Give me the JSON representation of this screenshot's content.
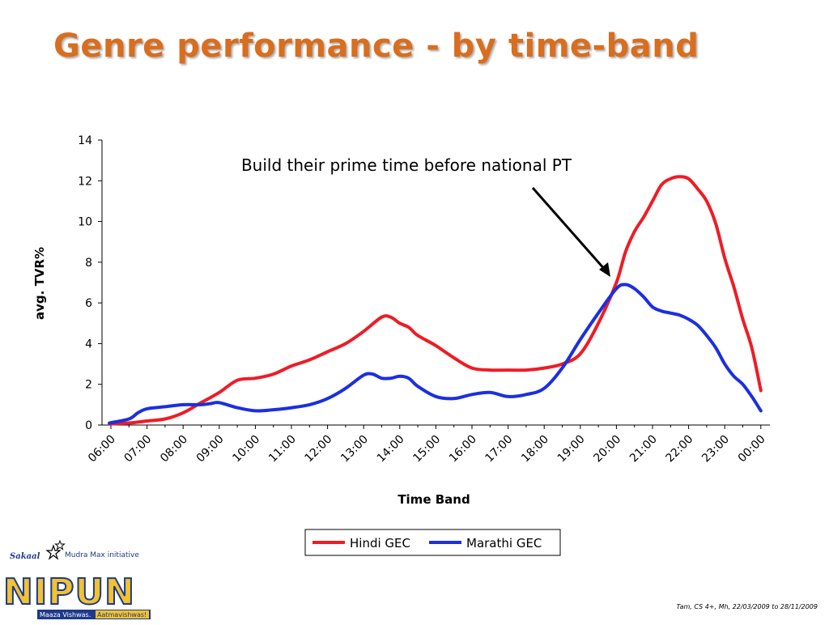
{
  "slide": {
    "title": "Genre performance - by time-band",
    "source_note": "Tam, CS 4+, Mh, 22/03/2009 to 28/11/2009"
  },
  "logo": {
    "brand_small": "Sakaal",
    "tagline": "Mudra Max initiative",
    "name": "NIPUN",
    "banner_left": "Maaza Vishwas.",
    "banner_right": "Aatmavishwas!"
  },
  "colors": {
    "title": "#D86E1E",
    "hindi": "#EE1C25",
    "marathi": "#1B2FE0"
  },
  "chart_data": {
    "type": "line",
    "title": "",
    "xlabel": "Time Band",
    "ylabel": "avg. TVR%",
    "ylim": [
      0,
      14
    ],
    "yticks": [
      0,
      2,
      4,
      6,
      8,
      10,
      12,
      14
    ],
    "xticks": [
      "06:00",
      "07:00",
      "08:00",
      "09:00",
      "10:00",
      "11:00",
      "12:00",
      "13:00",
      "14:00",
      "15:00",
      "16:00",
      "17:00",
      "18:00",
      "19:00",
      "20:00",
      "21:00",
      "22:00",
      "23:00",
      "00:00"
    ],
    "x_units": "hours from 06:00 (0 = 06:00, 18 = 00:00)",
    "xlim": [
      0,
      18.6
    ],
    "legend_position": "bottom",
    "annotation": "Build their prime time before national PT",
    "series": [
      {
        "name": "Hindi GEC",
        "color": "#EE1C25",
        "x": [
          -0.04,
          0.5,
          1.0,
          1.5,
          2.0,
          2.5,
          3.0,
          3.5,
          4.0,
          4.5,
          5.0,
          5.5,
          6.0,
          6.5,
          7.0,
          7.5,
          7.75,
          8.0,
          8.25,
          8.5,
          9.0,
          9.5,
          10.0,
          10.5,
          11.0,
          11.5,
          12.0,
          12.5,
          13.0,
          13.5,
          14.0,
          14.25,
          14.5,
          14.75,
          15.0,
          15.25,
          15.5,
          15.75,
          16.0,
          16.25,
          16.5,
          16.75,
          17.0,
          17.25,
          17.5,
          17.75,
          18.0
        ],
        "values": [
          0.05,
          0.1,
          0.2,
          0.3,
          0.6,
          1.1,
          1.6,
          2.2,
          2.3,
          2.5,
          2.9,
          3.2,
          3.6,
          4.0,
          4.6,
          5.3,
          5.3,
          5.0,
          4.8,
          4.4,
          3.9,
          3.3,
          2.8,
          2.7,
          2.7,
          2.7,
          2.8,
          3.0,
          3.5,
          5.0,
          7.0,
          8.5,
          9.5,
          10.2,
          11.0,
          11.8,
          12.1,
          12.2,
          12.1,
          11.6,
          11.0,
          9.9,
          8.2,
          6.8,
          5.2,
          3.8,
          1.7
        ]
      },
      {
        "name": "Marathi GEC",
        "color": "#1B2FE0",
        "x": [
          -0.04,
          0.5,
          0.75,
          1.0,
          1.5,
          2.0,
          2.5,
          2.75,
          3.0,
          3.5,
          4.0,
          4.5,
          5.0,
          5.5,
          6.0,
          6.5,
          7.0,
          7.25,
          7.5,
          7.75,
          8.0,
          8.25,
          8.5,
          9.0,
          9.5,
          10.0,
          10.5,
          11.0,
          11.5,
          12.0,
          12.5,
          13.0,
          13.5,
          14.0,
          14.25,
          14.5,
          14.75,
          15.0,
          15.25,
          15.5,
          15.75,
          16.0,
          16.25,
          16.5,
          16.75,
          17.0,
          17.25,
          17.5,
          17.75,
          18.0
        ],
        "values": [
          0.1,
          0.3,
          0.6,
          0.8,
          0.9,
          1.0,
          1.0,
          1.05,
          1.1,
          0.85,
          0.7,
          0.75,
          0.85,
          1.0,
          1.3,
          1.8,
          2.45,
          2.5,
          2.3,
          2.3,
          2.4,
          2.3,
          1.9,
          1.4,
          1.3,
          1.5,
          1.6,
          1.4,
          1.5,
          1.8,
          2.8,
          4.2,
          5.5,
          6.7,
          6.9,
          6.7,
          6.3,
          5.8,
          5.6,
          5.5,
          5.4,
          5.2,
          4.9,
          4.4,
          3.8,
          3.0,
          2.4,
          2.0,
          1.4,
          0.7
        ]
      }
    ]
  }
}
